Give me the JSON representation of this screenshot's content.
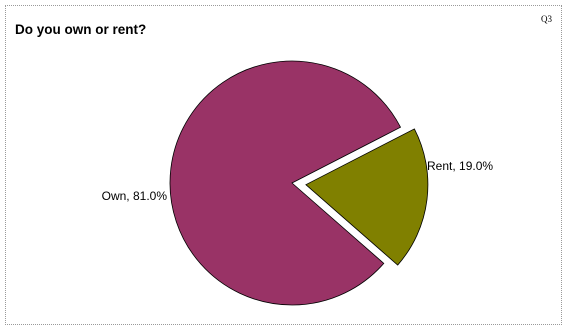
{
  "question_number": "Q3",
  "chart_data": {
    "type": "pie",
    "title": "Do you own or rent?",
    "slices": [
      {
        "label": "Own",
        "value": 81.0,
        "display": "Own, 81.0%",
        "color": "#993366",
        "exploded": false
      },
      {
        "label": "Rent",
        "value": 19.0,
        "display": "Rent, 19.0%",
        "color": "#808000",
        "exploded": true
      }
    ],
    "legend": "none"
  }
}
